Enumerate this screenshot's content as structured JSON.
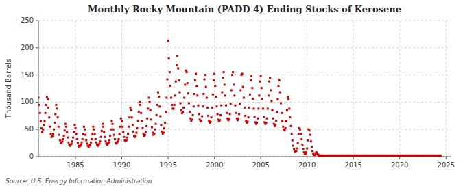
{
  "chart_data": {
    "type": "scatter",
    "title": "Monthly Rocky Mountain (PADD 4) Ending Stocks of Kerosene",
    "ylabel": "Thousand Barrels",
    "source": "Source: U.S. Energy Information Administration",
    "color": "#cc0000",
    "marker": "square",
    "grid": true,
    "xlim": [
      1981.0,
      2025.5
    ],
    "ylim": [
      0,
      250
    ],
    "xticks": [
      1985,
      1990,
      1995,
      2000,
      2005,
      2010,
      2015,
      2020,
      2025
    ],
    "yticks": [
      0,
      50,
      100,
      150,
      200,
      250
    ],
    "x": [
      1981.0,
      1981.083,
      1981.167,
      1981.25,
      1981.333,
      1981.417,
      1981.5,
      1981.583,
      1981.667,
      1981.75,
      1981.833,
      1981.917,
      1982.0,
      1982.083,
      1982.167,
      1982.25,
      1982.333,
      1982.417,
      1982.5,
      1982.583,
      1982.667,
      1982.75,
      1982.833,
      1982.917,
      1983.0,
      1983.083,
      1983.167,
      1983.25,
      1983.333,
      1983.417,
      1983.5,
      1983.583,
      1983.667,
      1983.75,
      1983.833,
      1983.917,
      1984.0,
      1984.083,
      1984.167,
      1984.25,
      1984.333,
      1984.417,
      1984.5,
      1984.583,
      1984.667,
      1984.75,
      1984.833,
      1984.917,
      1985.0,
      1985.083,
      1985.167,
      1985.25,
      1985.333,
      1985.417,
      1985.5,
      1985.583,
      1985.667,
      1985.75,
      1985.833,
      1985.917,
      1986.0,
      1986.083,
      1986.167,
      1986.25,
      1986.333,
      1986.417,
      1986.5,
      1986.583,
      1986.667,
      1986.75,
      1986.833,
      1986.917,
      1987.0,
      1987.083,
      1987.167,
      1987.25,
      1987.333,
      1987.417,
      1987.5,
      1987.583,
      1987.667,
      1987.75,
      1987.833,
      1987.917,
      1988.0,
      1988.083,
      1988.167,
      1988.25,
      1988.333,
      1988.417,
      1988.5,
      1988.583,
      1988.667,
      1988.75,
      1988.833,
      1988.917,
      1989.0,
      1989.083,
      1989.167,
      1989.25,
      1989.333,
      1989.417,
      1989.5,
      1989.583,
      1989.667,
      1989.75,
      1989.833,
      1989.917,
      1990.0,
      1990.083,
      1990.167,
      1990.25,
      1990.333,
      1990.417,
      1990.5,
      1990.583,
      1990.667,
      1990.75,
      1990.833,
      1990.917,
      1991.0,
      1991.083,
      1991.167,
      1991.25,
      1991.333,
      1991.417,
      1991.5,
      1991.583,
      1991.667,
      1991.75,
      1991.833,
      1991.917,
      1992.0,
      1992.083,
      1992.167,
      1992.25,
      1992.333,
      1992.417,
      1992.5,
      1992.583,
      1992.667,
      1992.75,
      1992.833,
      1992.917,
      1993.0,
      1993.083,
      1993.167,
      1993.25,
      1993.333,
      1993.417,
      1993.5,
      1993.583,
      1993.667,
      1993.75,
      1993.833,
      1993.917,
      1994.0,
      1994.083,
      1994.167,
      1994.25,
      1994.333,
      1994.417,
      1994.5,
      1994.583,
      1994.667,
      1994.75,
      1994.833,
      1994.917,
      1995.0,
      1995.083,
      1995.167,
      1995.25,
      1995.333,
      1995.417,
      1995.5,
      1995.583,
      1995.667,
      1995.75,
      1995.833,
      1995.917,
      1996.0,
      1996.083,
      1996.167,
      1996.25,
      1996.333,
      1996.417,
      1996.5,
      1996.583,
      1996.667,
      1996.75,
      1996.833,
      1996.917,
      1997.0,
      1997.083,
      1997.167,
      1997.25,
      1997.333,
      1997.417,
      1997.5,
      1997.583,
      1997.667,
      1997.75,
      1997.833,
      1997.917,
      1998.0,
      1998.083,
      1998.167,
      1998.25,
      1998.333,
      1998.417,
      1998.5,
      1998.583,
      1998.667,
      1998.75,
      1998.833,
      1998.917,
      1999.0,
      1999.083,
      1999.167,
      1999.25,
      1999.333,
      1999.417,
      1999.5,
      1999.583,
      1999.667,
      1999.75,
      1999.833,
      1999.917,
      2000.0,
      2000.083,
      2000.167,
      2000.25,
      2000.333,
      2000.417,
      2000.5,
      2000.583,
      2000.667,
      2000.75,
      2000.833,
      2000.917,
      2001.0,
      2001.083,
      2001.167,
      2001.25,
      2001.333,
      2001.417,
      2001.5,
      2001.583,
      2001.667,
      2001.75,
      2001.833,
      2001.917,
      2002.0,
      2002.083,
      2002.167,
      2002.25,
      2002.333,
      2002.417,
      2002.5,
      2002.583,
      2002.667,
      2002.75,
      2002.833,
      2002.917,
      2003.0,
      2003.083,
      2003.167,
      2003.25,
      2003.333,
      2003.417,
      2003.5,
      2003.583,
      2003.667,
      2003.75,
      2003.833,
      2003.917,
      2004.0,
      2004.083,
      2004.167,
      2004.25,
      2004.333,
      2004.417,
      2004.5,
      2004.583,
      2004.667,
      2004.75,
      2004.833,
      2004.917,
      2005.0,
      2005.083,
      2005.167,
      2005.25,
      2005.333,
      2005.417,
      2005.5,
      2005.583,
      2005.667,
      2005.75,
      2005.833,
      2005.917,
      2006.0,
      2006.083,
      2006.167,
      2006.25,
      2006.333,
      2006.417,
      2006.5,
      2006.583,
      2006.667,
      2006.75,
      2006.833,
      2006.917,
      2007.0,
      2007.083,
      2007.167,
      2007.25,
      2007.333,
      2007.417,
      2007.5,
      2007.583,
      2007.667,
      2007.75,
      2007.833,
      2007.917,
      2008.0,
      2008.083,
      2008.167,
      2008.25,
      2008.333,
      2008.417,
      2008.5,
      2008.583,
      2008.667,
      2008.75,
      2008.833,
      2008.917,
      2009.0,
      2009.083,
      2009.167,
      2009.25,
      2009.333,
      2009.417,
      2009.5,
      2009.583,
      2009.667,
      2009.75,
      2009.833,
      2009.917,
      2010.0,
      2010.083,
      2010.167,
      2010.25,
      2010.333,
      2010.417,
      2010.5,
      2010.583,
      2010.667,
      2010.75,
      2010.833,
      2010.917,
      2011.0,
      2011.083,
      2011.167,
      2011.25,
      2011.333,
      2011.417,
      2011.5,
      2011.583,
      2011.667,
      2011.75,
      2011.833,
      2011.917,
      2012.0,
      2012.083,
      2012.167,
      2012.25,
      2012.333,
      2012.417,
      2012.5,
      2012.583,
      2012.667,
      2012.75,
      2012.833,
      2012.917,
      2013.0,
      2013.083,
      2013.167,
      2013.25,
      2013.333,
      2013.417,
      2013.5,
      2013.583,
      2013.667,
      2013.75,
      2013.833,
      2013.917,
      2014.0,
      2014.083,
      2014.167,
      2014.25,
      2014.333,
      2014.417,
      2014.5,
      2014.583,
      2014.667,
      2014.75,
      2014.833,
      2014.917,
      2015.0,
      2015.083,
      2015.167,
      2015.25,
      2015.333,
      2015.417,
      2015.5,
      2015.583,
      2015.667,
      2015.75,
      2015.833,
      2015.917,
      2016.0,
      2016.083,
      2016.167,
      2016.25,
      2016.333,
      2016.417,
      2016.5,
      2016.583,
      2016.667,
      2016.75,
      2016.833,
      2016.917,
      2017.0,
      2017.083,
      2017.167,
      2017.25,
      2017.333,
      2017.417,
      2017.5,
      2017.583,
      2017.667,
      2017.75,
      2017.833,
      2017.917,
      2018.0,
      2018.083,
      2018.167,
      2018.25,
      2018.333,
      2018.417,
      2018.5,
      2018.583,
      2018.667,
      2018.75,
      2018.833,
      2018.917,
      2019.0,
      2019.083,
      2019.167,
      2019.25,
      2019.333,
      2019.417,
      2019.5,
      2019.583,
      2019.667,
      2019.75,
      2019.833,
      2019.917,
      2020.0,
      2020.083,
      2020.167,
      2020.25,
      2020.333,
      2020.417,
      2020.5,
      2020.583,
      2020.667,
      2020.75,
      2020.833,
      2020.917,
      2021.0,
      2021.083,
      2021.167,
      2021.25,
      2021.333,
      2021.417,
      2021.5,
      2021.583,
      2021.667,
      2021.75,
      2021.833,
      2021.917,
      2022.0,
      2022.083,
      2022.167,
      2022.25,
      2022.333,
      2022.417,
      2022.5,
      2022.583,
      2022.667,
      2022.75,
      2022.833,
      2022.917,
      2023.0,
      2023.083,
      2023.167,
      2023.25,
      2023.333,
      2023.417,
      2023.5,
      2023.583,
      2023.667,
      2023.75,
      2023.833,
      2023.917,
      2024.0,
      2024.083,
      2024.167,
      2024.25,
      2024.333,
      2024.417
    ],
    "values": [
      108,
      95,
      80,
      65,
      52,
      45,
      50,
      58,
      65,
      80,
      95,
      110,
      105,
      90,
      72,
      55,
      42,
      36,
      38,
      42,
      50,
      62,
      78,
      95,
      88,
      72,
      55,
      40,
      30,
      25,
      26,
      28,
      32,
      38,
      48,
      60,
      55,
      45,
      35,
      26,
      22,
      20,
      22,
      24,
      28,
      35,
      45,
      58,
      52,
      42,
      32,
      25,
      20,
      18,
      20,
      22,
      26,
      32,
      42,
      55,
      50,
      40,
      30,
      24,
      20,
      18,
      20,
      22,
      26,
      32,
      42,
      55,
      50,
      42,
      32,
      26,
      22,
      20,
      22,
      24,
      28,
      36,
      47,
      60,
      55,
      45,
      36,
      28,
      24,
      22,
      24,
      26,
      30,
      38,
      50,
      65,
      60,
      50,
      40,
      32,
      26,
      24,
      26,
      28,
      32,
      42,
      55,
      70,
      65,
      55,
      45,
      36,
      30,
      28,
      30,
      35,
      42,
      55,
      72,
      90,
      85,
      72,
      58,
      46,
      38,
      36,
      38,
      44,
      52,
      66,
      82,
      100,
      95,
      80,
      65,
      52,
      42,
      38,
      40,
      46,
      56,
      70,
      88,
      108,
      100,
      85,
      68,
      54,
      44,
      40,
      42,
      50,
      60,
      76,
      95,
      118,
      110,
      92,
      74,
      58,
      46,
      42,
      44,
      52,
      62,
      82,
      108,
      142,
      213,
      180,
      155,
      130,
      108,
      95,
      88,
      88,
      95,
      112,
      138,
      168,
      185,
      162,
      140,
      118,
      98,
      85,
      80,
      82,
      90,
      108,
      132,
      158,
      155,
      135,
      116,
      98,
      82,
      70,
      66,
      68,
      76,
      92,
      115,
      140,
      152,
      130,
      112,
      94,
      78,
      68,
      65,
      66,
      74,
      92,
      115,
      142,
      150,
      128,
      108,
      90,
      75,
      65,
      62,
      64,
      72,
      90,
      114,
      140,
      152,
      130,
      110,
      92,
      78,
      68,
      65,
      67,
      76,
      94,
      118,
      145,
      155,
      132,
      112,
      94,
      80,
      70,
      67,
      69,
      78,
      97,
      122,
      150,
      155,
      132,
      112,
      94,
      80,
      70,
      67,
      70,
      78,
      97,
      122,
      150,
      152,
      128,
      108,
      90,
      75,
      65,
      62,
      64,
      72,
      90,
      114,
      140,
      148,
      126,
      106,
      88,
      73,
      63,
      60,
      62,
      70,
      88,
      112,
      138,
      148,
      126,
      106,
      88,
      73,
      63,
      60,
      62,
      70,
      88,
      112,
      138,
      145,
      122,
      102,
      85,
      70,
      60,
      56,
      58,
      66,
      82,
      105,
      130,
      140,
      118,
      98,
      80,
      65,
      55,
      50,
      48,
      52,
      65,
      85,
      110,
      105,
      88,
      72,
      56,
      42,
      30,
      20,
      14,
      10,
      8,
      10,
      15,
      25,
      42,
      52,
      50,
      42,
      32,
      22,
      14,
      8,
      5,
      5,
      8,
      15,
      30,
      50,
      48,
      40,
      28,
      18,
      10,
      5,
      3,
      3,
      5,
      8,
      6,
      4,
      3,
      2,
      2,
      2,
      2,
      2,
      2,
      2,
      2,
      2,
      2,
      2,
      2,
      2,
      2,
      2,
      2,
      2,
      2,
      2,
      2,
      2,
      2,
      2,
      2,
      2,
      2,
      2,
      2,
      2,
      2,
      2,
      2,
      2,
      2,
      2,
      2,
      2,
      2,
      2,
      2,
      2,
      2,
      2,
      2,
      2,
      2,
      2,
      2,
      2,
      2,
      2,
      2,
      2,
      2,
      2,
      2,
      2,
      2,
      2,
      2,
      2,
      2,
      2,
      2,
      2,
      2,
      2,
      2,
      2,
      2,
      2,
      2,
      2,
      2,
      2,
      2,
      2,
      2,
      2,
      2,
      2,
      2,
      2,
      2,
      2,
      2,
      2,
      2,
      2,
      2,
      2,
      2,
      2,
      2,
      2,
      2,
      2,
      2,
      2,
      2,
      2,
      2,
      2,
      2,
      2,
      2,
      2,
      2,
      2,
      2,
      2,
      2,
      2,
      2,
      2,
      2,
      2,
      2,
      2,
      2,
      2,
      2,
      2,
      2,
      2,
      2,
      2,
      2,
      2,
      2,
      2,
      2,
      2,
      2,
      2,
      2,
      2,
      2,
      2,
      2,
      2,
      2,
      2,
      2,
      2,
      2,
      2,
      2,
      2,
      2,
      2,
      2,
      2,
      2,
      2,
      2,
      2,
      2
    ]
  }
}
